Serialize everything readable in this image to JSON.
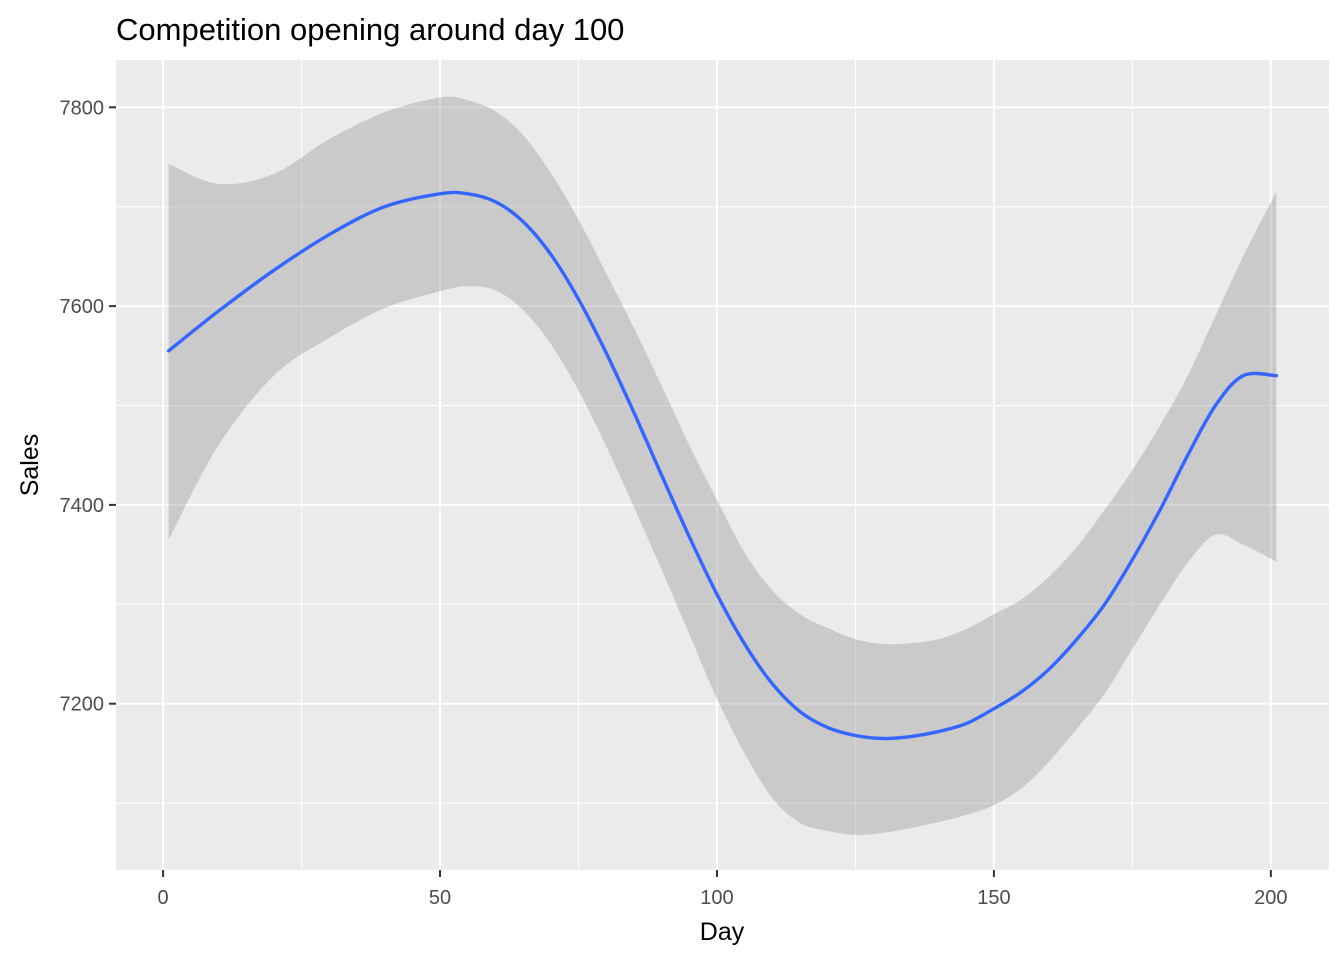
{
  "chart_data": {
    "type": "line",
    "title": "Competition opening around day 100",
    "xlabel": "Day",
    "ylabel": "Sales",
    "xlim": [
      -8.5,
      210.5
    ],
    "ylim": [
      7032.7,
      7847.6
    ],
    "x_ticks": [
      0,
      50,
      100,
      150,
      200
    ],
    "x_tick_labels": [
      "0",
      "50",
      "100",
      "150",
      "200"
    ],
    "y_ticks": [
      7200,
      7400,
      7600,
      7800
    ],
    "y_tick_labels": [
      "7200",
      "7400",
      "7600",
      "7800"
    ],
    "grid": true,
    "legend": "none",
    "colors": {
      "panel_background": "#ebebeb",
      "grid": "#ffffff",
      "line": "#3366ff",
      "ribbon": "#999999",
      "tick_text": "#4d4d4d"
    },
    "series": [
      {
        "x": [
          1,
          10,
          20,
          30,
          40,
          50,
          55,
          60,
          65,
          70,
          75,
          80,
          85,
          90,
          95,
          100,
          105,
          110,
          115,
          120,
          125,
          130,
          135,
          140,
          145,
          150,
          155,
          160,
          165,
          170,
          175,
          180,
          185,
          190,
          195,
          201
        ],
        "y": [
          7555,
          7595,
          7636,
          7672,
          7700,
          7713,
          7713,
          7705,
          7685,
          7652,
          7607,
          7553,
          7493,
          7430,
          7368,
          7310,
          7260,
          7220,
          7192,
          7176,
          7168,
          7165,
          7167,
          7172,
          7180,
          7195,
          7212,
          7235,
          7265,
          7300,
          7345,
          7395,
          7450,
          7500,
          7530,
          7530
        ],
        "lower": [
          7365,
          7460,
          7530,
          7568,
          7598,
          7615,
          7620,
          7616,
          7596,
          7562,
          7515,
          7459,
          7398,
          7335,
          7270,
          7205,
          7150,
          7105,
          7080,
          7072,
          7068,
          7070,
          7075,
          7081,
          7088,
          7098,
          7115,
          7142,
          7175,
          7210,
          7255,
          7300,
          7342,
          7370,
          7360,
          7343
        ],
        "upper": [
          7743,
          7723,
          7733,
          7768,
          7795,
          7810,
          7807,
          7796,
          7772,
          7734,
          7687,
          7633,
          7578,
          7520,
          7460,
          7405,
          7352,
          7314,
          7290,
          7276,
          7265,
          7260,
          7261,
          7265,
          7275,
          7290,
          7305,
          7328,
          7358,
          7395,
          7435,
          7480,
          7530,
          7590,
          7650,
          7715
        ]
      }
    ]
  }
}
